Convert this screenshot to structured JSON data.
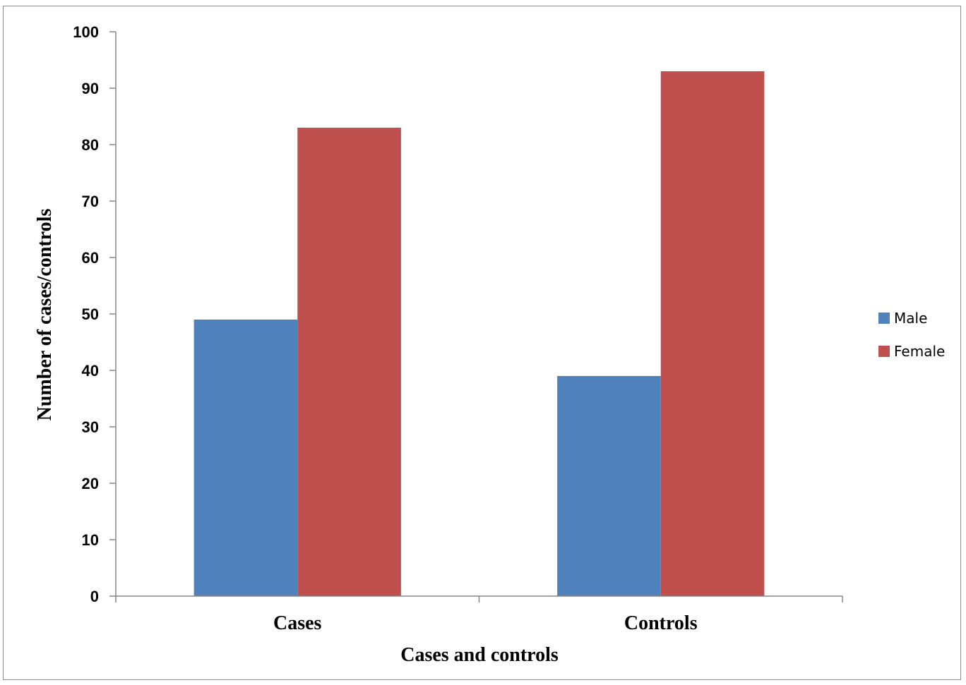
{
  "chart_data": {
    "type": "bar",
    "categories": [
      "Cases",
      "Controls"
    ],
    "series": [
      {
        "name": "Male",
        "values": [
          49,
          39
        ],
        "color": "#4f81bd"
      },
      {
        "name": "Female",
        "values": [
          83,
          93
        ],
        "color": "#c0504d"
      }
    ],
    "title": "",
    "xlabel": "Cases and controls",
    "ylabel": "Number of cases/controls",
    "ylim": [
      0,
      100
    ],
    "yticks": [
      "0",
      "10",
      "20",
      "30",
      "40",
      "50",
      "60",
      "70",
      "80",
      "90",
      "100"
    ],
    "grid": false,
    "legend_position": "right"
  }
}
